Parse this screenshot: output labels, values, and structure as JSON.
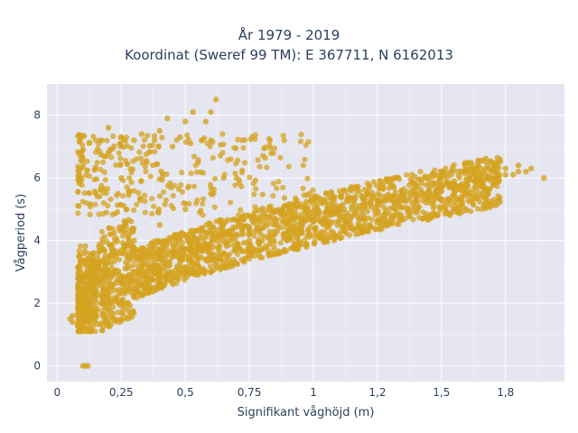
{
  "chart_data": {
    "type": "scatter",
    "title": "År 1979 - 2019",
    "subtitle": "Koordinat (Sweref 99 TM): E 367711, N 6162013",
    "xlabel": "Signifikant våghöjd (m)",
    "ylabel": "Vågperiod (s)",
    "xlim": [
      -0.04,
      1.98
    ],
    "ylim": [
      -0.5,
      9.0
    ],
    "xticks": [
      0,
      0.25,
      0.5,
      0.75,
      1,
      1.25,
      1.5,
      1.75
    ],
    "xtick_labels": [
      "0",
      "0,25",
      "0,5",
      "0,75",
      "1",
      "1,2",
      "1,5",
      "1,8"
    ],
    "yticks": [
      0,
      2,
      4,
      6,
      8
    ],
    "ytick_labels": [
      "0",
      "2",
      "4",
      "6",
      "8"
    ],
    "grid": true,
    "legend": "none",
    "marker_color": "#d4a320",
    "plot_background": "#e5e6f0",
    "series": [
      {
        "x": [
          0.05,
          0.06,
          0.08,
          0.1,
          0.12,
          0.15,
          0.18,
          0.2,
          0.22,
          0.25,
          0.28,
          0.3,
          0.33,
          0.35,
          0.38,
          0.4,
          0.42,
          0.45,
          0.48,
          0.5,
          0.52,
          0.55,
          0.58,
          0.6,
          0.62,
          0.65,
          0.68,
          0.7,
          0.72,
          0.75,
          0.78,
          0.8,
          0.82,
          0.85,
          0.88,
          0.9,
          0.92,
          0.95,
          0.98,
          1.0,
          1.02,
          1.05,
          1.08,
          1.1,
          1.12,
          1.15,
          1.18,
          1.2,
          1.22,
          1.25,
          1.28,
          1.3,
          1.33,
          1.35,
          1.38,
          1.4,
          1.43,
          1.45,
          1.48,
          1.5,
          1.53,
          1.55,
          1.58,
          1.6,
          1.63,
          1.65,
          1.68,
          1.7,
          1.72,
          1.75,
          1.78,
          1.8,
          1.83,
          1.85,
          1.9,
          0.1,
          0.11,
          0.12,
          0.1,
          0.11,
          0.12,
          0.13,
          0.15,
          0.2,
          0.25,
          0.3,
          0.35,
          0.4,
          0.45,
          0.5,
          0.55,
          0.6,
          0.65,
          0.7,
          0.75,
          0.12,
          0.2,
          0.3,
          0.4,
          0.5,
          0.6,
          0.7,
          0.15,
          0.25,
          0.35,
          0.45,
          0.55,
          0.65,
          0.2,
          0.3,
          0.4,
          0.5,
          0.6,
          0.62,
          0.6,
          0.43,
          0.53,
          0.58,
          0.2,
          0.25,
          0.33,
          0.38,
          0.48,
          0.52,
          1.8,
          1.75,
          1.7,
          1.65,
          1.6,
          1.55,
          1.5,
          1.45,
          1.4,
          1.35,
          1.3,
          1.25,
          1.2,
          1.15,
          1.1,
          1.05,
          1.0,
          0.95,
          0.9,
          0.85,
          0.8,
          0.75,
          0.7,
          0.65,
          0.6,
          0.55,
          0.5,
          0.45,
          0.4,
          0.35,
          0.3,
          0.25,
          0.2,
          0.15,
          0.12,
          0.1,
          0.08,
          0.06
        ],
        "y": [
          1.5,
          1.6,
          1.7,
          1.8,
          2.0,
          2.2,
          2.3,
          2.5,
          2.6,
          2.8,
          2.9,
          3.0,
          3.1,
          3.2,
          3.3,
          3.4,
          3.4,
          3.5,
          3.6,
          3.7,
          3.7,
          3.8,
          3.9,
          3.9,
          4.0,
          4.1,
          4.1,
          4.2,
          4.2,
          4.3,
          4.4,
          4.4,
          4.5,
          4.5,
          4.6,
          4.6,
          4.7,
          4.7,
          4.8,
          4.8,
          4.9,
          4.9,
          5.0,
          5.0,
          5.0,
          5.1,
          5.1,
          5.2,
          5.2,
          5.3,
          5.3,
          5.3,
          5.4,
          5.4,
          5.5,
          5.5,
          5.5,
          5.6,
          5.6,
          5.7,
          5.7,
          5.8,
          5.8,
          5.8,
          5.9,
          5.9,
          6.0,
          6.0,
          6.0,
          6.1,
          6.1,
          6.2,
          6.2,
          6.3,
          6.0,
          0.0,
          0.0,
          0.0,
          1.3,
          1.2,
          1.4,
          1.5,
          1.6,
          1.8,
          2.0,
          2.2,
          2.4,
          2.6,
          2.8,
          3.0,
          3.2,
          3.4,
          3.6,
          3.8,
          4.0,
          3.0,
          3.5,
          4.0,
          4.5,
          5.0,
          5.5,
          6.0,
          5.5,
          6.0,
          6.5,
          7.0,
          6.5,
          6.0,
          6.8,
          7.2,
          7.5,
          7.8,
          7.2,
          8.5,
          8.1,
          7.9,
          8.1,
          7.8,
          7.6,
          7.3,
          7.4,
          7.2,
          7.3,
          7.1,
          6.4,
          6.3,
          6.2,
          6.0,
          5.8,
          5.9,
          5.6,
          5.6,
          5.5,
          5.3,
          5.3,
          5.2,
          5.1,
          5.0,
          4.8,
          4.7,
          4.6,
          4.5,
          4.3,
          4.2,
          4.0,
          3.9,
          3.7,
          3.6,
          3.4,
          3.2,
          3.0,
          2.8,
          2.6,
          2.4,
          2.2,
          2.0,
          1.8,
          1.6,
          1.4,
          1.3,
          1.3,
          1.4
        ]
      }
    ]
  }
}
